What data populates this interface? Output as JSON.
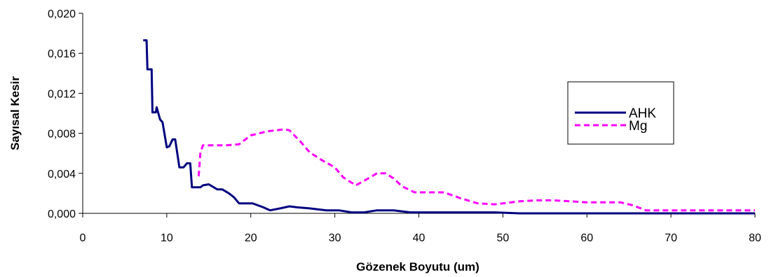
{
  "chart_data": {
    "type": "line",
    "title": "",
    "xlabel": "Gözenek Boyutu (um)",
    "ylabel": "Sayısal Kesir",
    "xlim": [
      0,
      80
    ],
    "ylim": [
      0,
      0.02
    ],
    "x_ticks": [
      0,
      10,
      20,
      30,
      40,
      50,
      60,
      70,
      80
    ],
    "y_ticks": [
      0,
      0.004,
      0.008,
      0.012,
      0.016,
      0.02
    ],
    "x_tick_labels": [
      "0",
      "10",
      "20",
      "30",
      "40",
      "50",
      "60",
      "70",
      "80"
    ],
    "y_tick_labels": [
      "0,000",
      "0,004",
      "0,008",
      "0,012",
      "0,016",
      "0,020"
    ],
    "grid": false,
    "legend_position": "right",
    "series": [
      {
        "name": "AHK",
        "color": "#000080",
        "style": "solid",
        "points": [
          [
            7.2,
            0.0173
          ],
          [
            7.6,
            0.0173
          ],
          [
            7.7,
            0.0144
          ],
          [
            8.2,
            0.0144
          ],
          [
            8.3,
            0.0101
          ],
          [
            8.7,
            0.0101
          ],
          [
            8.8,
            0.0106
          ],
          [
            9.2,
            0.0094
          ],
          [
            9.5,
            0.0091
          ],
          [
            10.0,
            0.0066
          ],
          [
            10.3,
            0.0067
          ],
          [
            10.7,
            0.0074
          ],
          [
            11.0,
            0.0074
          ],
          [
            11.5,
            0.0046
          ],
          [
            12.0,
            0.0046
          ],
          [
            12.4,
            0.005
          ],
          [
            12.8,
            0.005
          ],
          [
            13.0,
            0.0026
          ],
          [
            14.0,
            0.0026
          ],
          [
            14.3,
            0.0028
          ],
          [
            15.0,
            0.0029
          ],
          [
            16.0,
            0.0024
          ],
          [
            16.6,
            0.0024
          ],
          [
            17.4,
            0.002
          ],
          [
            18.0,
            0.0016
          ],
          [
            18.6,
            0.001
          ],
          [
            20.2,
            0.001
          ],
          [
            21.5,
            0.0006
          ],
          [
            22.3,
            0.0003
          ],
          [
            23.5,
            0.0005
          ],
          [
            24.6,
            0.0007
          ],
          [
            25.5,
            0.0006
          ],
          [
            27.0,
            0.0005
          ],
          [
            29.0,
            0.0003
          ],
          [
            30.5,
            0.0003
          ],
          [
            32.0,
            0.0001
          ],
          [
            33.5,
            0.0001
          ],
          [
            35.0,
            0.0003
          ],
          [
            37.0,
            0.0003
          ],
          [
            39.0,
            0.0001
          ],
          [
            42.0,
            0.0001
          ],
          [
            45.0,
            0.0001
          ],
          [
            49.0,
            0.0001
          ],
          [
            52.0,
            0.0
          ],
          [
            60.0,
            0.0
          ],
          [
            70.0,
            0.0
          ],
          [
            80.0,
            0.0
          ]
        ]
      },
      {
        "name": "Mg",
        "color": "#FF00FF",
        "style": "dashed",
        "points": [
          [
            13.8,
            0.0037
          ],
          [
            14.0,
            0.006
          ],
          [
            14.3,
            0.0068
          ],
          [
            16.0,
            0.0068
          ],
          [
            17.0,
            0.0068
          ],
          [
            18.6,
            0.0069
          ],
          [
            20.0,
            0.0078
          ],
          [
            22.0,
            0.0082
          ],
          [
            24.0,
            0.0084
          ],
          [
            24.6,
            0.0083
          ],
          [
            26.0,
            0.0071
          ],
          [
            27.0,
            0.0061
          ],
          [
            28.5,
            0.0053
          ],
          [
            30.0,
            0.0046
          ],
          [
            31.0,
            0.0036
          ],
          [
            32.5,
            0.0028
          ],
          [
            34.0,
            0.0035
          ],
          [
            35.0,
            0.004
          ],
          [
            36.0,
            0.004
          ],
          [
            37.0,
            0.0035
          ],
          [
            38.0,
            0.0027
          ],
          [
            39.5,
            0.0021
          ],
          [
            41.0,
            0.0021
          ],
          [
            43.0,
            0.0021
          ],
          [
            45.0,
            0.0015
          ],
          [
            47.0,
            0.001
          ],
          [
            49.0,
            0.0009
          ],
          [
            50.0,
            0.001
          ],
          [
            52.0,
            0.0012
          ],
          [
            54.0,
            0.0013
          ],
          [
            56.0,
            0.0013
          ],
          [
            58.0,
            0.0012
          ],
          [
            60.0,
            0.0011
          ],
          [
            62.0,
            0.0011
          ],
          [
            64.0,
            0.0011
          ],
          [
            65.5,
            0.0008
          ],
          [
            67.0,
            0.0003
          ],
          [
            70.0,
            0.0003
          ],
          [
            73.0,
            0.0003
          ],
          [
            76.0,
            0.0003
          ],
          [
            80.0,
            0.0003
          ]
        ]
      }
    ]
  }
}
